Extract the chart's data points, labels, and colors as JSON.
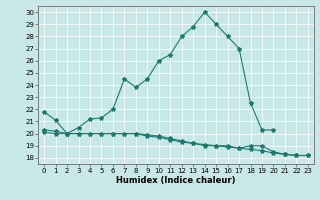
{
  "title": "",
  "xlabel": "Humidex (Indice chaleur)",
  "bg_color": "#c8e8e8",
  "line_color": "#1a7a6e",
  "xlim": [
    -0.5,
    23.5
  ],
  "ylim": [
    17.5,
    30.5
  ],
  "yticks": [
    18,
    19,
    20,
    21,
    22,
    23,
    24,
    25,
    26,
    27,
    28,
    29,
    30
  ],
  "xticks": [
    0,
    1,
    2,
    3,
    4,
    5,
    6,
    7,
    8,
    9,
    10,
    11,
    12,
    13,
    14,
    15,
    16,
    17,
    18,
    19,
    20,
    21,
    22,
    23
  ],
  "line1_x": [
    0,
    1,
    2,
    3,
    4,
    5,
    6,
    7,
    8,
    9,
    10,
    11,
    12,
    13,
    14,
    15,
    16,
    17,
    18,
    19,
    20
  ],
  "line1_y": [
    21.8,
    21.1,
    20.0,
    20.5,
    21.2,
    21.3,
    22.0,
    24.5,
    23.8,
    24.5,
    26.0,
    26.5,
    28.0,
    28.8,
    30.0,
    29.0,
    28.0,
    27.0,
    22.5,
    20.3,
    20.3
  ],
  "line2_x": [
    0,
    1,
    2,
    3,
    4,
    5,
    6,
    7,
    8,
    9,
    10,
    11,
    12,
    13,
    14,
    15,
    16,
    17,
    18,
    19,
    20,
    21,
    22,
    23
  ],
  "line2_y": [
    20.1,
    20.0,
    20.0,
    20.0,
    20.0,
    20.0,
    20.0,
    20.0,
    20.0,
    19.8,
    19.7,
    19.5,
    19.3,
    19.2,
    19.0,
    19.0,
    19.0,
    18.8,
    19.0,
    19.0,
    18.5,
    18.3,
    18.2,
    18.2
  ],
  "line3_x": [
    0,
    1,
    2,
    3,
    4,
    5,
    6,
    7,
    8,
    9,
    10,
    11,
    12,
    13,
    14,
    15,
    16,
    17,
    18,
    19,
    20,
    21,
    22,
    23
  ],
  "line3_y": [
    20.3,
    20.2,
    20.0,
    20.0,
    20.0,
    20.0,
    20.0,
    20.0,
    20.0,
    19.9,
    19.8,
    19.6,
    19.4,
    19.2,
    19.1,
    19.0,
    18.9,
    18.8,
    18.7,
    18.6,
    18.4,
    18.3,
    18.2,
    18.2
  ],
  "xlabel_fontsize": 6,
  "tick_fontsize": 5,
  "linewidth": 0.8,
  "markersize": 3
}
